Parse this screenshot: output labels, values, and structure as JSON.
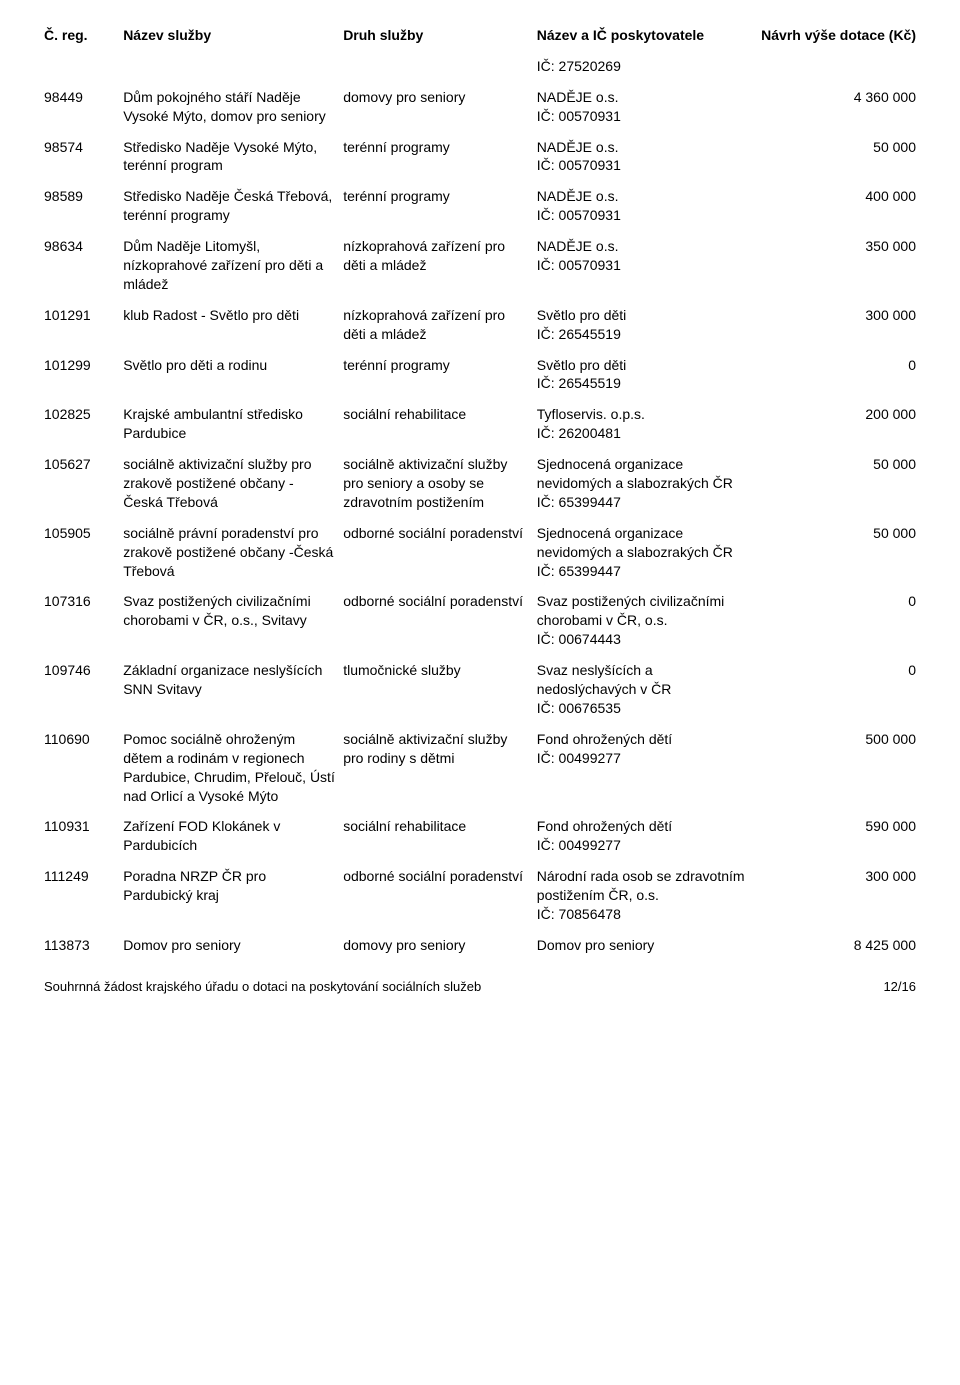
{
  "header": {
    "col1": "Č. reg.",
    "col2": "Název služby",
    "col3": "Druh služby",
    "col4": "Název a IČ poskytovatele",
    "col5": "Návrh výše dotace (Kč)"
  },
  "carryover": {
    "provider": "IČ: 27520269"
  },
  "rows": [
    {
      "reg": "98449",
      "name": "Dům pokojného stáří Naděje Vysoké Mýto, domov pro seniory",
      "type": "domovy pro seniory",
      "provider": "NADĚJE o.s.\nIČ: 00570931",
      "amount": "4 360 000"
    },
    {
      "reg": "98574",
      "name": "Středisko Naděje Vysoké Mýto, terénní program",
      "type": "terénní programy",
      "provider": "NADĚJE o.s.\nIČ: 00570931",
      "amount": "50 000"
    },
    {
      "reg": "98589",
      "name": "Středisko Naděje Česká Třebová, terénní programy",
      "type": "terénní programy",
      "provider": "NADĚJE o.s.\nIČ: 00570931",
      "amount": "400 000"
    },
    {
      "reg": "98634",
      "name": "Dům Naděje Litomyšl, nízkoprahové zařízení pro děti a mládež",
      "type": "nízkoprahová zařízení pro děti a mládež",
      "provider": "NADĚJE o.s.\nIČ: 00570931",
      "amount": "350 000"
    },
    {
      "reg": "101291",
      "name": "klub Radost - Světlo pro děti",
      "type": "nízkoprahová zařízení pro děti a mládež",
      "provider": "Světlo pro děti\nIČ: 26545519",
      "amount": "300 000"
    },
    {
      "reg": "101299",
      "name": "Světlo pro děti a rodinu",
      "type": "terénní programy",
      "provider": "Světlo pro děti\nIČ: 26545519",
      "amount": "0"
    },
    {
      "reg": "102825",
      "name": "Krajské ambulantní středisko Pardubice",
      "type": "sociální rehabilitace",
      "provider": "Tyfloservis. o.p.s.\nIČ: 26200481",
      "amount": "200 000"
    },
    {
      "reg": "105627",
      "name": "sociálně aktivizační služby pro zrakově postižené občany - Česká Třebová",
      "type": "sociálně aktivizační služby pro seniory a osoby se zdravotním postižením",
      "provider": "Sjednocená organizace nevidomých a slabozrakých ČR\nIČ: 65399447",
      "amount": "50 000"
    },
    {
      "reg": "105905",
      "name": "sociálně právní poradenství pro zrakově postižené občany -Česká Třebová",
      "type": "odborné sociální poradenství",
      "provider": "Sjednocená organizace nevidomých a slabozrakých ČR\nIČ: 65399447",
      "amount": "50 000"
    },
    {
      "reg": "107316",
      "name": "Svaz postižených civilizačními chorobami v ČR, o.s., Svitavy",
      "type": "odborné sociální poradenství",
      "provider": "Svaz postižených civilizačními chorobami v ČR, o.s.\nIČ: 00674443",
      "amount": "0"
    },
    {
      "reg": "109746",
      "name": "Základní organizace neslyšících SNN Svitavy",
      "type": "tlumočnické služby",
      "provider": "Svaz neslyšících a nedoslýchavých v ČR\nIČ: 00676535",
      "amount": "0"
    },
    {
      "reg": "110690",
      "name": "Pomoc sociálně ohroženým dětem a rodinám v regionech Pardubice, Chrudim, Přelouč, Ústí nad Orlicí a Vysoké Mýto",
      "type": "sociálně aktivizační služby pro rodiny s dětmi",
      "provider": "Fond ohrožených dětí\nIČ: 00499277",
      "amount": "500 000"
    },
    {
      "reg": "110931",
      "name": "Zařízení FOD Klokánek v Pardubicích",
      "type": "sociální rehabilitace",
      "provider": "Fond ohrožených dětí\nIČ: 00499277",
      "amount": "590 000"
    },
    {
      "reg": "111249",
      "name": "Poradna NRZP ČR pro Pardubický kraj",
      "type": "odborné sociální poradenství",
      "provider": "Národní rada osob se zdravotním postižením ČR, o.s.\nIČ: 70856478",
      "amount": "300 000"
    },
    {
      "reg": "113873",
      "name": "Domov pro seniory",
      "type": "domovy pro seniory",
      "provider": "Domov pro seniory",
      "amount": "8 425 000"
    }
  ],
  "footer": {
    "text": "Souhrnná žádost krajského úřadu o dotaci na poskytování sociálních služeb",
    "page": "12/16"
  }
}
